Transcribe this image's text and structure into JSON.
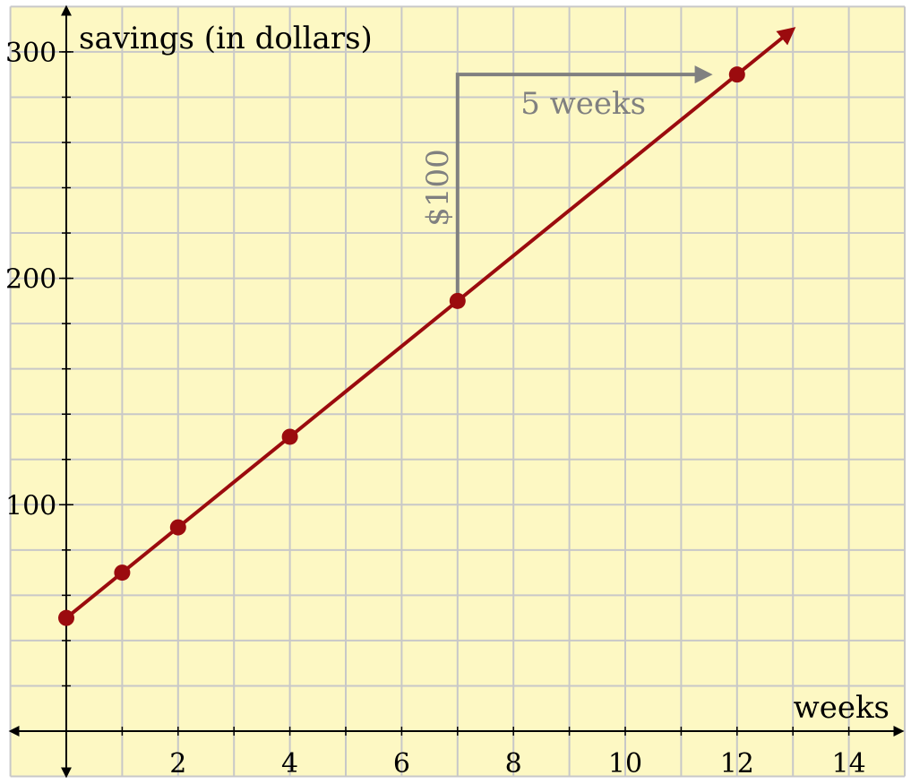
{
  "chart_data": {
    "type": "line",
    "xlabel": "weeks",
    "ylabel": "savings (in dollars)",
    "xlim": [
      -1,
      15
    ],
    "ylim": [
      -20,
      320
    ],
    "x_ticks": [
      2,
      4,
      6,
      8,
      10,
      12,
      14
    ],
    "y_ticks": [
      100,
      200,
      300
    ],
    "grid": true,
    "series": [
      {
        "x": [
          0,
          1,
          2,
          4,
          7,
          12
        ],
        "y": [
          50,
          70,
          90,
          130,
          190,
          290
        ]
      }
    ],
    "line_extends_to_x": 13,
    "annotations": {
      "rise_label": "$100",
      "run_label": "5 weeks",
      "rise": {
        "x": 7,
        "y_from": 190,
        "y_to": 290
      },
      "run": {
        "y": 290,
        "x_from": 7,
        "x_to": 11.5
      }
    },
    "colors": {
      "background": "#fdf8c3",
      "series": "#9b0b0e",
      "annotation": "#808080",
      "grid": "#c8c8c8"
    }
  }
}
